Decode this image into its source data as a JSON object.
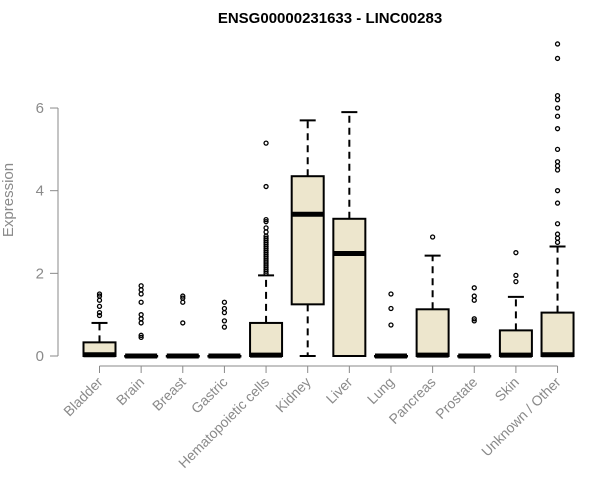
{
  "chart_data": {
    "type": "boxplot",
    "title": "ENSG00000231633 - LINC00283",
    "xlabel": "",
    "ylabel": "Expression",
    "ylim": [
      0,
      7.6
    ],
    "yticks": [
      0,
      2,
      4,
      6
    ],
    "ytick_labels": [
      "0",
      "2",
      "4",
      "6"
    ],
    "categories": [
      "Bladder",
      "Brain",
      "Breast",
      "Gastric",
      "Hematopoietic cells",
      "Kidney",
      "Liver",
      "Lung",
      "Pancreas",
      "Prostate",
      "Skin",
      "Unknown / Other"
    ],
    "boxes": [
      {
        "name": "Bladder",
        "min": 0,
        "q1": 0,
        "median": 0.03,
        "q3": 0.33,
        "max": 0.8,
        "outliers": [
          0.98,
          1.05,
          1.2,
          1.35,
          1.45,
          1.5
        ]
      },
      {
        "name": "Brain",
        "min": 0,
        "q1": 0,
        "median": 0,
        "q3": 0,
        "max": 0,
        "outliers": [
          0.45,
          0.5,
          0.8,
          0.9,
          1.0,
          1.3,
          1.5,
          1.6,
          1.7
        ]
      },
      {
        "name": "Breast",
        "min": 0,
        "q1": 0,
        "median": 0,
        "q3": 0,
        "max": 0,
        "outliers": [
          0.8,
          1.3,
          1.4,
          1.45
        ]
      },
      {
        "name": "Gastric",
        "min": 0,
        "q1": 0,
        "median": 0,
        "q3": 0,
        "max": 0,
        "outliers": [
          0.7,
          0.85,
          1.05,
          1.15,
          1.3
        ]
      },
      {
        "name": "Hematopoietic cells",
        "min": 0,
        "q1": 0,
        "median": 0.02,
        "q3": 0.8,
        "max": 1.95,
        "outliers": [
          2.0,
          2.05,
          2.1,
          2.15,
          2.2,
          2.25,
          2.3,
          2.35,
          2.4,
          2.45,
          2.5,
          2.55,
          2.6,
          2.65,
          2.7,
          2.75,
          2.8,
          2.85,
          2.9,
          3.0,
          3.1,
          3.25,
          3.3,
          4.1,
          5.15
        ]
      },
      {
        "name": "Kidney",
        "min": 0,
        "q1": 1.25,
        "median": 3.43,
        "q3": 4.35,
        "max": 5.7,
        "outliers": []
      },
      {
        "name": "Liver",
        "min": 0,
        "q1": 0,
        "median": 2.48,
        "q3": 3.32,
        "max": 5.9,
        "outliers": []
      },
      {
        "name": "Lung",
        "min": 0,
        "q1": 0,
        "median": 0,
        "q3": 0,
        "max": 0,
        "outliers": [
          0.75,
          1.15,
          1.5
        ]
      },
      {
        "name": "Pancreas",
        "min": 0,
        "q1": 0,
        "median": 0.02,
        "q3": 1.13,
        "max": 2.43,
        "outliers": [
          2.88
        ]
      },
      {
        "name": "Prostate",
        "min": 0,
        "q1": 0,
        "median": 0,
        "q3": 0,
        "max": 0,
        "outliers": [
          0.85,
          0.9,
          1.35,
          1.45,
          1.65
        ]
      },
      {
        "name": "Skin",
        "min": 0,
        "q1": 0,
        "median": 0.02,
        "q3": 0.62,
        "max": 1.43,
        "outliers": [
          1.8,
          1.95,
          2.5
        ]
      },
      {
        "name": "Unknown / Other",
        "min": 0,
        "q1": 0,
        "median": 0.03,
        "q3": 1.05,
        "max": 2.65,
        "outliers": [
          2.75,
          2.85,
          2.95,
          3.2,
          3.7,
          4.0,
          4.5,
          4.6,
          4.7,
          5.0,
          5.5,
          5.8,
          6.0,
          6.2,
          6.3,
          7.2,
          7.55
        ]
      }
    ],
    "colors": {
      "box_fill": "#ede6cd",
      "box_stroke": "#000000",
      "axis": "#8a8a8a",
      "title": "#000000"
    },
    "grid": false,
    "legend": "none"
  }
}
